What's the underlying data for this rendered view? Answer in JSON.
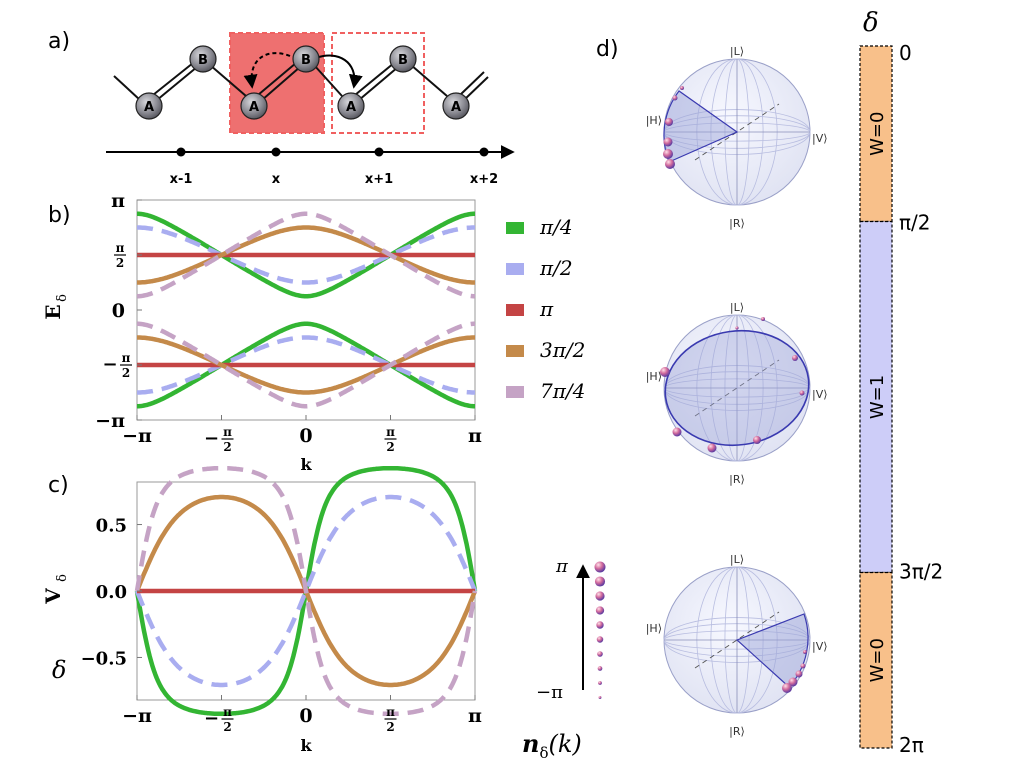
{
  "colors": {
    "green": "#33b533",
    "blue": "#a9adf0",
    "red": "#c44444",
    "brown": "#c48a4a",
    "purple": "#c5a3c5",
    "orange": "#f8c08a",
    "lavender": "#cdcdf8",
    "cellFill": "#ee7070",
    "cellDash": "#f06060",
    "sphereLine": "#3a3ab0",
    "axis": "#000000"
  },
  "panels": {
    "a": "a)",
    "b": "b)",
    "c": "c)",
    "d": "d)"
  },
  "lattice": {
    "nodes": [
      "A",
      "B",
      "A",
      "B",
      "A",
      "B",
      "A"
    ],
    "positions": [
      "x-1",
      "x",
      "x+1",
      "x+2"
    ]
  },
  "chart_data": [
    {
      "type": "line",
      "id": "dispersion",
      "title": "",
      "xlabel": "k",
      "ylabel": "E",
      "ylabel_sub": "δ",
      "xlim": [
        -3.1416,
        3.1416
      ],
      "ylim": [
        -3.1416,
        3.1416
      ],
      "xticks": [
        "−π",
        "−π/2",
        "0",
        "π/2",
        "π"
      ],
      "yticks": [
        "π",
        "π/2",
        "0",
        "−π/2",
        "−π"
      ],
      "legend": [
        "π/4",
        "π/2",
        "π",
        "3π/2",
        "7π/4"
      ],
      "legend_placement": "right",
      "series": [
        {
          "name": "π/4",
          "style": "solid",
          "color": "green",
          "delta": 0.7854
        },
        {
          "name": "π/2",
          "style": "dashed",
          "color": "blue",
          "delta": 1.5708
        },
        {
          "name": "π",
          "style": "solid",
          "color": "red",
          "delta": 3.1416
        },
        {
          "name": "3π/2",
          "style": "solid",
          "color": "brown",
          "delta": 4.7124
        },
        {
          "name": "7π/4",
          "style": "dashed",
          "color": "purple",
          "delta": 5.4978
        }
      ]
    },
    {
      "type": "line",
      "id": "velocity",
      "title": "",
      "xlabel": "k",
      "ylabel": "V",
      "ylabel_sub": "δ",
      "xlim": [
        -3.1416,
        3.1416
      ],
      "ylim": [
        -0.82,
        0.82
      ],
      "xticks": [
        "−π",
        "−π/2",
        "0",
        "π/2",
        "π"
      ],
      "yticks": [
        "0.5",
        "0.0",
        "−0.5"
      ],
      "series": [
        {
          "name": "π/4",
          "style": "solid",
          "color": "green",
          "delta": 0.7854
        },
        {
          "name": "π/2",
          "style": "dashed",
          "color": "blue",
          "delta": 1.5708
        },
        {
          "name": "π",
          "style": "solid",
          "color": "red",
          "delta": 3.1416
        },
        {
          "name": "3π/2",
          "style": "solid",
          "color": "brown",
          "delta": 4.7124
        },
        {
          "name": "7π/4",
          "style": "dashed",
          "color": "purple",
          "delta": 5.4978
        }
      ]
    }
  ],
  "panel_c_extra": "δ",
  "kbar": {
    "top": "π",
    "bottom": "−π",
    "label": "n",
    "label_sub": "δ",
    "label_arg": "(k)"
  },
  "spheres": {
    "top": "|L⟩",
    "bottom": "|R⟩",
    "left": "|H⟩",
    "right": "|V⟩"
  },
  "winding": {
    "header": "δ",
    "ticks": [
      "0",
      "π/2",
      "3π/2",
      "2π"
    ],
    "segments": [
      {
        "label": "W=0",
        "color": "orange",
        "from": 0,
        "to": 1.5708
      },
      {
        "label": "W=1",
        "color": "lavender",
        "from": 1.5708,
        "to": 4.7124
      },
      {
        "label": "W=0",
        "color": "orange",
        "from": 4.7124,
        "to": 6.2832
      }
    ]
  }
}
